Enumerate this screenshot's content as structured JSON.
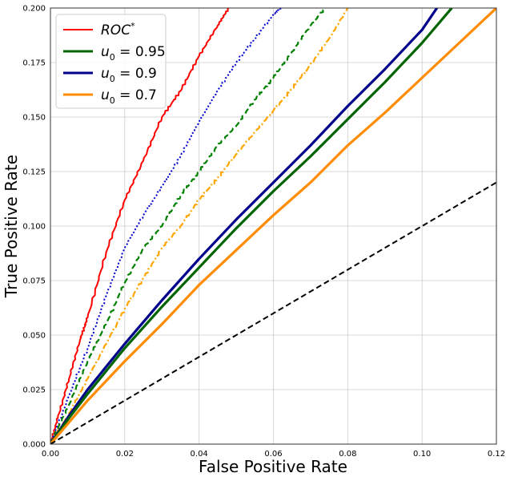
{
  "chart_data": {
    "type": "line",
    "xlabel": "False Positive Rate",
    "ylabel": "True Positive Rate",
    "xlim": [
      0,
      0.12
    ],
    "ylim": [
      0,
      0.2
    ],
    "xticks": [
      "0.00",
      "0.02",
      "0.04",
      "0.06",
      "0.08",
      "0.10",
      "0.12"
    ],
    "yticks": [
      "0.000",
      "0.025",
      "0.050",
      "0.075",
      "0.100",
      "0.125",
      "0.150",
      "0.175",
      "0.200"
    ],
    "grid": true,
    "legend_position": "top-left",
    "legend": [
      {
        "label_main": "ROC",
        "label_sup": "*",
        "label_rest": "",
        "color": "#ff0000",
        "style": "solid"
      },
      {
        "label_main": "u",
        "label_sub": "0",
        "label_rest": " = 0.95",
        "color": "#006400",
        "style": "solid"
      },
      {
        "label_main": "u",
        "label_sub": "0",
        "label_rest": " = 0.9",
        "color": "#00008b",
        "style": "solid"
      },
      {
        "label_main": "u",
        "label_sub": "0",
        "label_rest": " = 0.7",
        "color": "#ff8c00",
        "style": "solid"
      }
    ],
    "series": [
      {
        "color": "#ff0000",
        "style": "solid",
        "width": 2,
        "jagged": true,
        "x": [
          0,
          0.002,
          0.005,
          0.008,
          0.01,
          0.015,
          0.02,
          0.025,
          0.03,
          0.035,
          0.04,
          0.045,
          0.048
        ],
        "y": [
          0,
          0.012,
          0.03,
          0.048,
          0.058,
          0.088,
          0.112,
          0.13,
          0.15,
          0.162,
          0.178,
          0.192,
          0.2
        ]
      },
      {
        "color": "#0000cd",
        "style": "dotted",
        "width": 2,
        "jagged": true,
        "x": [
          0,
          0.005,
          0.01,
          0.015,
          0.02,
          0.025,
          0.03,
          0.035,
          0.04,
          0.045,
          0.05,
          0.055,
          0.06,
          0.062
        ],
        "y": [
          0,
          0.022,
          0.044,
          0.068,
          0.09,
          0.105,
          0.118,
          0.132,
          0.148,
          0.162,
          0.175,
          0.186,
          0.197,
          0.2
        ]
      },
      {
        "color": "#008000",
        "style": "dashed",
        "width": 2.2,
        "jagged": true,
        "x": [
          0,
          0.005,
          0.01,
          0.015,
          0.02,
          0.025,
          0.03,
          0.035,
          0.04,
          0.045,
          0.05,
          0.055,
          0.06,
          0.065,
          0.07,
          0.074
        ],
        "y": [
          0,
          0.018,
          0.038,
          0.055,
          0.074,
          0.09,
          0.1,
          0.114,
          0.125,
          0.137,
          0.146,
          0.158,
          0.168,
          0.18,
          0.192,
          0.2
        ]
      },
      {
        "color": "#ffa500",
        "style": "dashdot",
        "width": 2.2,
        "jagged": true,
        "x": [
          0,
          0.005,
          0.01,
          0.015,
          0.02,
          0.025,
          0.03,
          0.035,
          0.04,
          0.045,
          0.05,
          0.055,
          0.06,
          0.065,
          0.07,
          0.075,
          0.08
        ],
        "y": [
          0,
          0.014,
          0.03,
          0.046,
          0.062,
          0.076,
          0.09,
          0.1,
          0.112,
          0.122,
          0.133,
          0.143,
          0.153,
          0.163,
          0.174,
          0.186,
          0.2
        ]
      },
      {
        "color": "#00008b",
        "style": "solid",
        "width": 3.2,
        "jagged": false,
        "x": [
          0,
          0.005,
          0.01,
          0.02,
          0.03,
          0.04,
          0.05,
          0.06,
          0.07,
          0.08,
          0.09,
          0.1,
          0.104
        ],
        "y": [
          0,
          0.013,
          0.025,
          0.046,
          0.066,
          0.085,
          0.103,
          0.12,
          0.137,
          0.155,
          0.172,
          0.19,
          0.2
        ]
      },
      {
        "color": "#006400",
        "style": "solid",
        "width": 3.2,
        "jagged": false,
        "x": [
          0,
          0.005,
          0.01,
          0.02,
          0.03,
          0.04,
          0.05,
          0.06,
          0.07,
          0.08,
          0.09,
          0.1,
          0.108
        ],
        "y": [
          0,
          0.012,
          0.023,
          0.044,
          0.063,
          0.081,
          0.099,
          0.116,
          0.132,
          0.149,
          0.166,
          0.184,
          0.2
        ]
      },
      {
        "color": "#ff8c00",
        "style": "solid",
        "width": 3.2,
        "jagged": false,
        "x": [
          0,
          0.005,
          0.01,
          0.02,
          0.03,
          0.04,
          0.05,
          0.06,
          0.07,
          0.08,
          0.09,
          0.1,
          0.11,
          0.12
        ],
        "y": [
          0,
          0.01,
          0.02,
          0.038,
          0.055,
          0.073,
          0.089,
          0.105,
          0.12,
          0.137,
          0.152,
          0.168,
          0.184,
          0.2
        ]
      },
      {
        "color": "#000000",
        "style": "dashed",
        "width": 2,
        "jagged": false,
        "x": [
          0,
          0.12
        ],
        "y": [
          0,
          0.12
        ]
      }
    ]
  }
}
